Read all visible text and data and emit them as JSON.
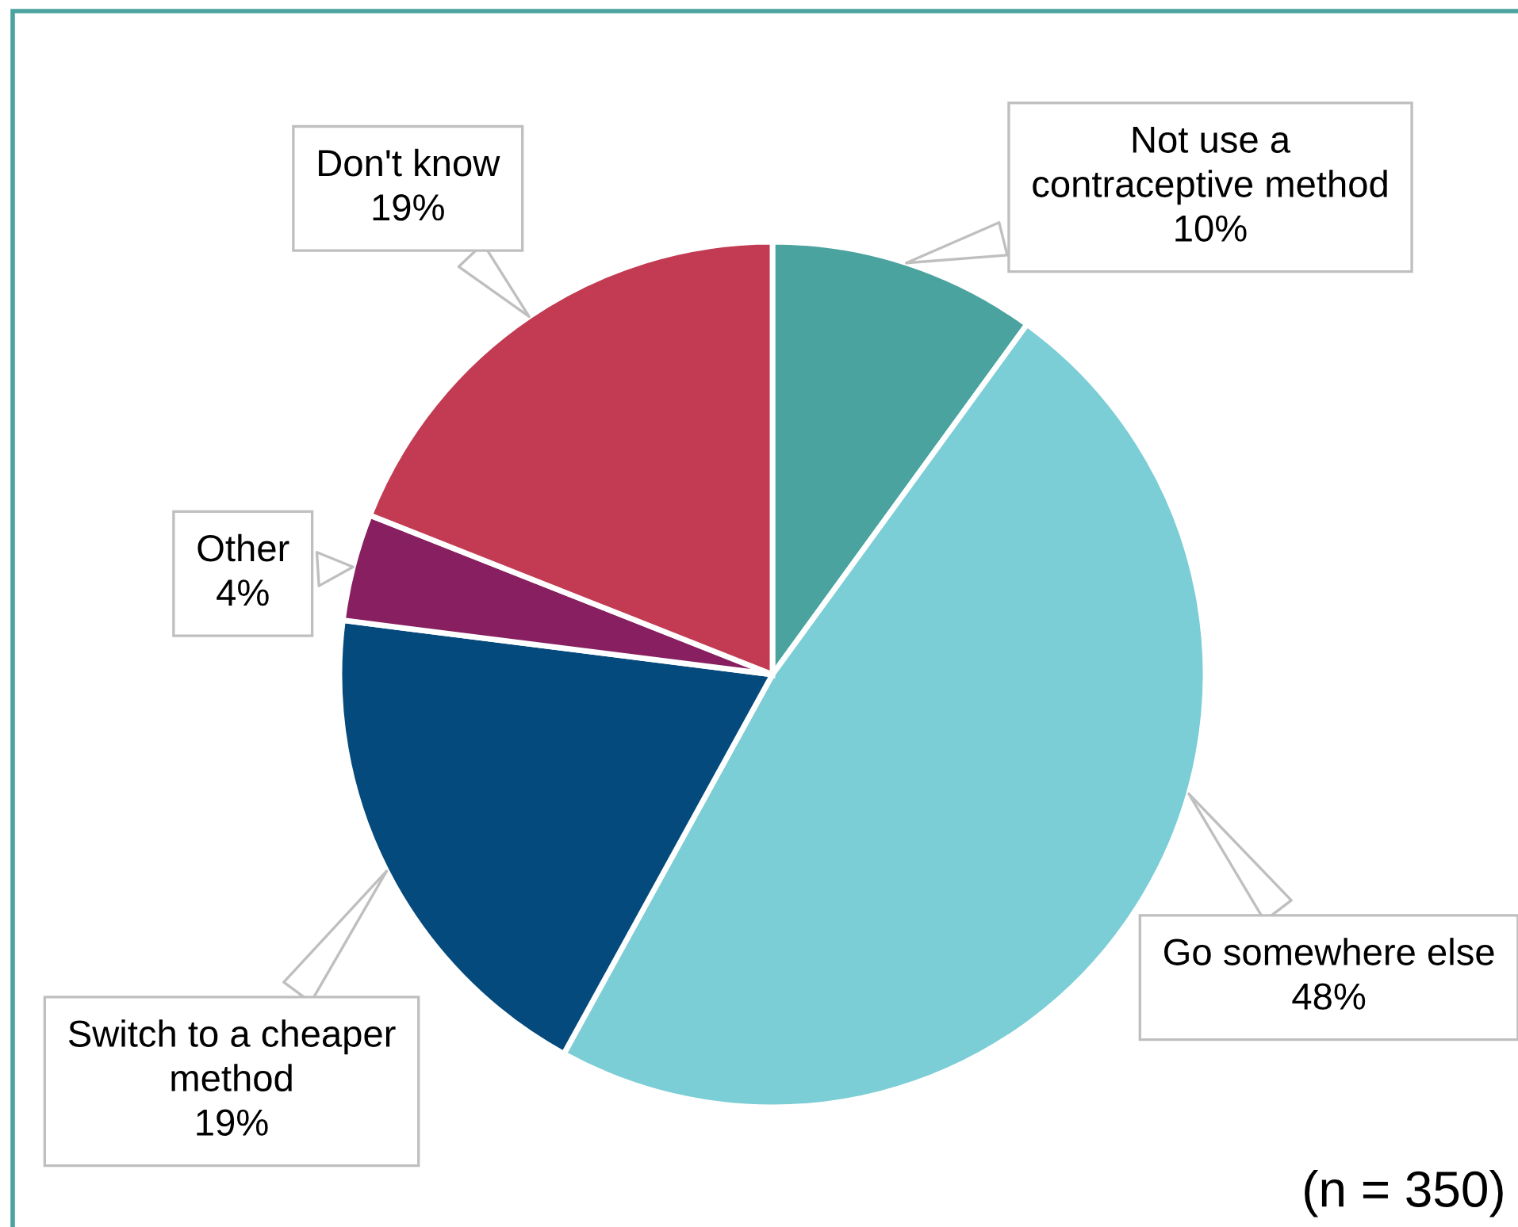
{
  "chart_data": {
    "type": "pie",
    "categories": [
      "Not use a contraceptive method",
      "Go somewhere else",
      "Switch to a cheaper method",
      "Other",
      "Don't know"
    ],
    "values": [
      10,
      48,
      19,
      4,
      19
    ],
    "colors": [
      "#4ba3a0",
      "#7bcdd6",
      "#054a7c",
      "#881f60",
      "#c23b52"
    ],
    "value_labels": [
      "10%",
      "48%",
      "19%",
      "4%",
      "19%"
    ],
    "annotations": [
      "(n = 350)"
    ]
  }
}
